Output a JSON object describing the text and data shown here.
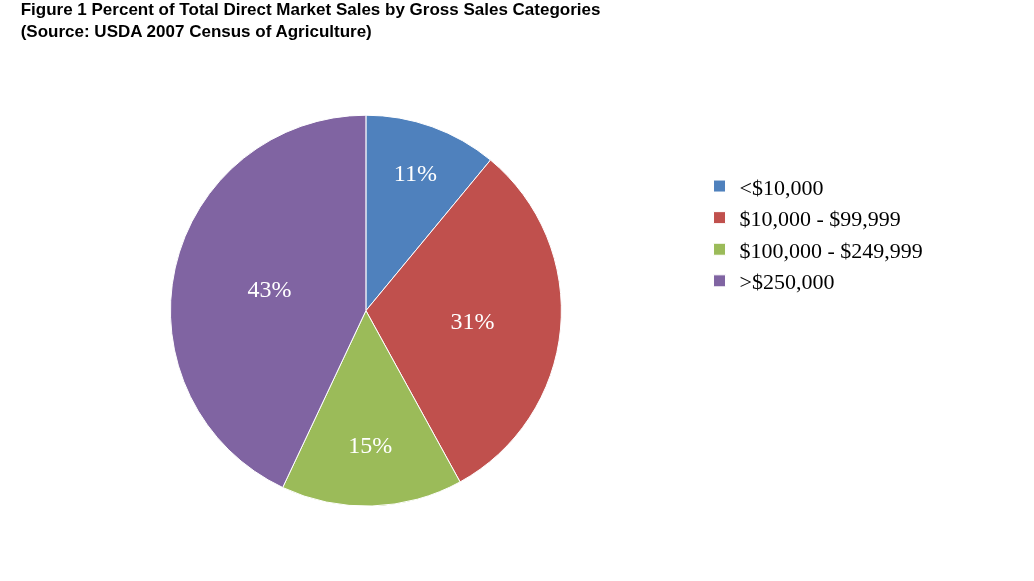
{
  "chart_data": {
    "type": "pie",
    "title": "Figure 1 Percent of Total Direct Market Sales by Gross Sales Categories",
    "subtitle": "(Source: USDA 2007 Census of Agriculture)",
    "categories": [
      "<$10,000",
      "$10,000 - $99,999",
      "$100,000 - $249,999",
      ">$250,000"
    ],
    "values": [
      11,
      31,
      15,
      43
    ],
    "value_labels": [
      "11%",
      "31%",
      "15%",
      "43%"
    ],
    "colors": [
      "#4f81bd",
      "#c0504d",
      "#9bbb59",
      "#8064a2"
    ],
    "legend": "right"
  }
}
